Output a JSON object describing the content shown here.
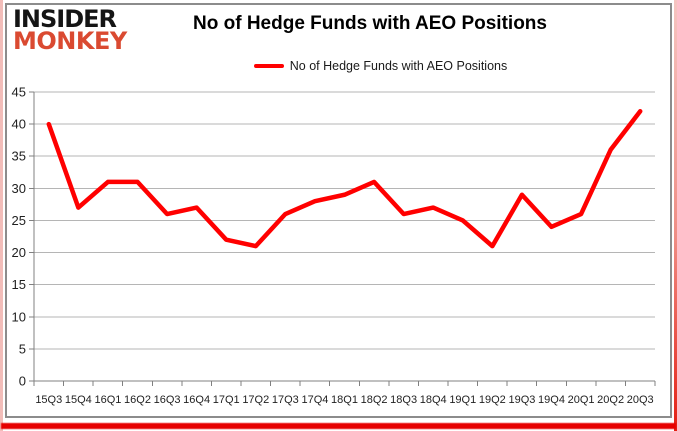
{
  "logo": {
    "line1": "INSIDER",
    "line2": "MONKEY"
  },
  "header": {
    "title": "No of Hedge Funds with AEO Positions"
  },
  "legend": {
    "label": "No of Hedge Funds with AEO Positions"
  },
  "colors": {
    "line": "#ff0000",
    "logo_accent": "#da4a31",
    "grid": "#b5b5b5",
    "axis": "#808080",
    "tick_label": "#1f1f1f",
    "frame_gray": "#8c8c8c",
    "border_red": "#e60000",
    "border_pink": "#f2bdb9"
  },
  "chart_data": {
    "type": "line",
    "title": "No of Hedge Funds with AEO Positions",
    "series": [
      {
        "name": "No of Hedge Funds with AEO Positions",
        "color": "#ff0000",
        "values": [
          40,
          27,
          31,
          31,
          26,
          27,
          22,
          21,
          26,
          28,
          29,
          31,
          26,
          27,
          25,
          21,
          29,
          24,
          26,
          36,
          42
        ]
      }
    ],
    "categories": [
      "15Q3",
      "15Q4",
      "16Q1",
      "16Q2",
      "16Q3",
      "16Q4",
      "17Q1",
      "17Q2",
      "17Q3",
      "17Q4",
      "18Q1",
      "18Q2",
      "18Q3",
      "18Q4",
      "19Q1",
      "19Q2",
      "19Q3",
      "19Q4",
      "20Q1",
      "20Q2",
      "20Q3"
    ],
    "xlabel": "",
    "ylabel": "",
    "ylim": [
      0,
      45
    ],
    "y_ticks": [
      0,
      5,
      10,
      15,
      20,
      25,
      30,
      35,
      40,
      45
    ],
    "grid": "horizontal",
    "legend_position": "top"
  }
}
